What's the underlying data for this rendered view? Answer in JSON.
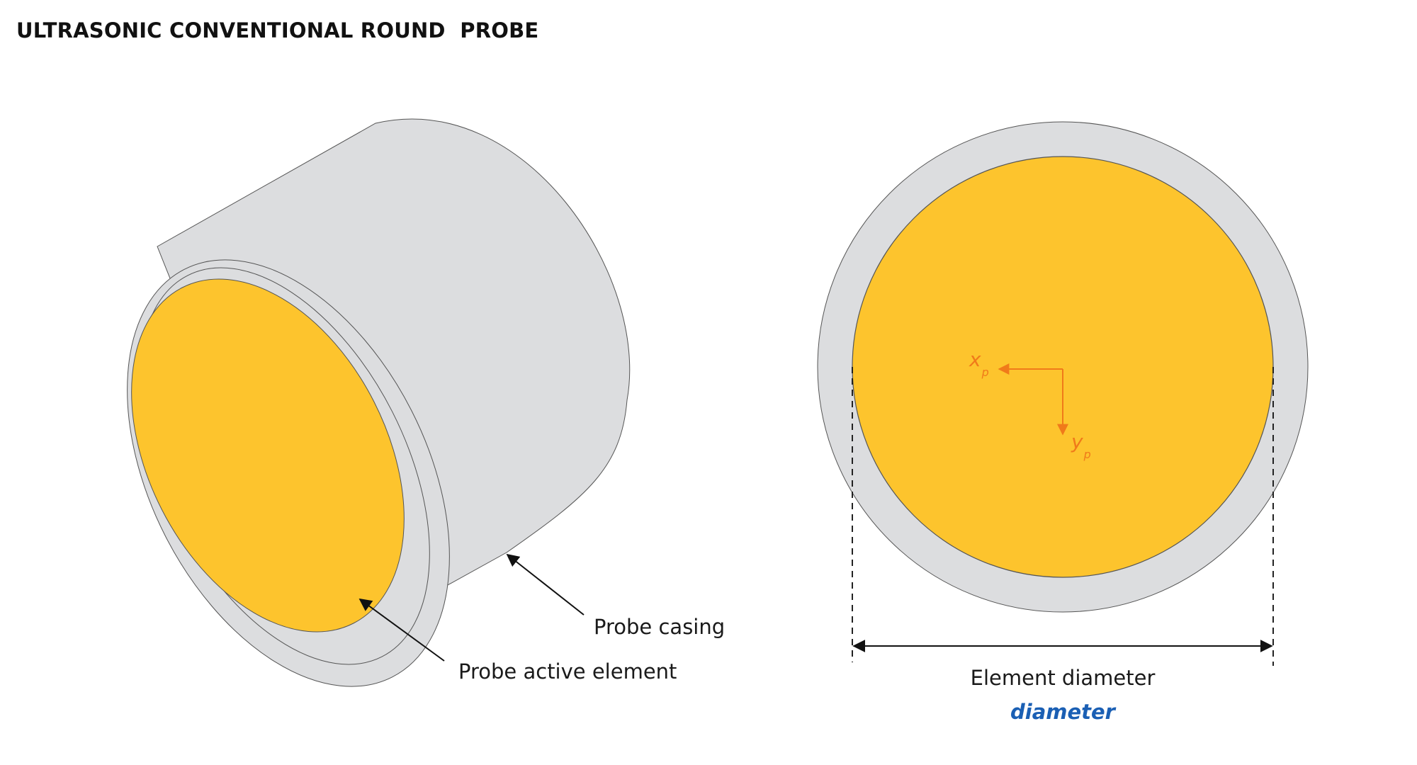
{
  "title": "ULTRASONIC CONVENTIONAL ROUND  PROBE",
  "labels": {
    "probe_casing": "Probe casing",
    "probe_active_element": "Probe active element",
    "element_diameter": "Element diameter",
    "diameter_param": "diameter"
  },
  "axes": {
    "x_main": "x",
    "x_sub": "p",
    "y_main": "y",
    "y_sub": "p"
  },
  "colors": {
    "casing": "#dcdddf",
    "element": "#fdc42d",
    "outline": "#555555",
    "axis_arrow": "#f07a1a",
    "param_text": "#1a5fb4",
    "label_text": "#1a1a1a"
  }
}
